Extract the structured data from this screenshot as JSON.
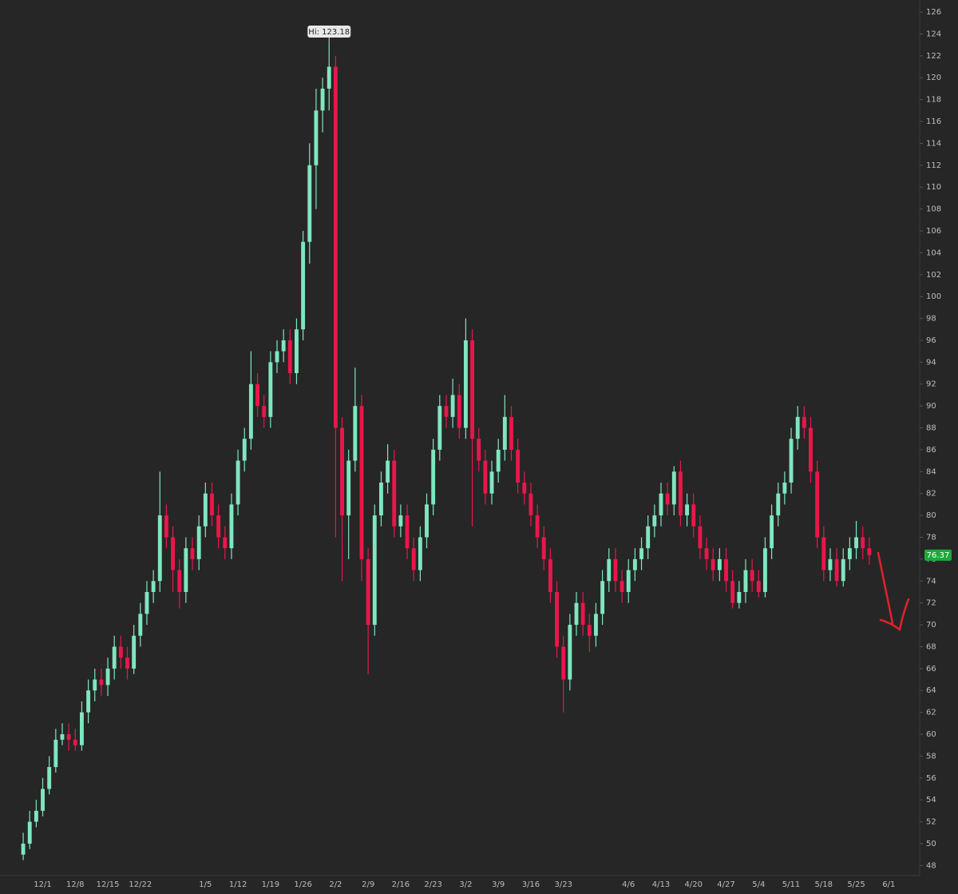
{
  "chart_data": {
    "type": "candlestick",
    "up_color": "#7fe6bf",
    "down_color": "#e8174a",
    "hi_label": "Hi: 123.18",
    "categories": [
      null,
      null,
      null,
      "12/1",
      null,
      null,
      null,
      null,
      "12/8",
      null,
      null,
      null,
      null,
      "12/15",
      null,
      null,
      null,
      null,
      "12/22",
      null,
      null,
      null,
      null,
      null,
      null,
      null,
      null,
      null,
      "1/5",
      null,
      null,
      null,
      null,
      "1/12",
      null,
      null,
      null,
      null,
      "1/19",
      null,
      null,
      null,
      null,
      "1/26",
      null,
      null,
      null,
      null,
      "2/2",
      null,
      null,
      null,
      null,
      "2/9",
      null,
      null,
      null,
      null,
      "2/16",
      null,
      null,
      null,
      null,
      "2/23",
      null,
      null,
      null,
      null,
      "3/2",
      null,
      null,
      null,
      null,
      "3/9",
      null,
      null,
      null,
      null,
      "3/16",
      null,
      null,
      null,
      null,
      "3/23",
      null,
      null,
      null,
      null,
      null,
      null,
      null,
      null,
      null,
      "4/6",
      null,
      null,
      null,
      null,
      "4/13",
      null,
      null,
      null,
      null,
      "4/20",
      null,
      null,
      null,
      null,
      "4/27",
      null,
      null,
      null,
      null,
      "5/4",
      null,
      null,
      null,
      null,
      "5/11",
      null,
      null,
      null,
      null,
      "5/18",
      null,
      null,
      null,
      null,
      "5/25",
      null,
      null,
      null,
      null,
      "6/1",
      null,
      null,
      null,
      null
    ],
    "open": [
      49,
      50,
      52,
      53,
      55,
      57,
      59.5,
      60,
      59.5,
      59,
      62,
      64,
      65,
      64.5,
      66,
      68,
      67,
      66,
      69,
      71,
      73,
      74,
      80,
      78,
      75,
      73,
      77,
      76,
      79,
      82,
      80,
      78,
      77,
      81,
      85,
      87,
      92,
      90,
      89,
      94,
      95,
      96,
      93,
      97,
      105,
      112,
      117,
      119,
      121,
      88,
      80,
      85,
      90,
      76,
      70,
      80,
      83,
      85,
      79,
      80,
      77,
      75,
      78,
      81,
      86,
      90,
      89,
      91,
      88,
      96,
      87,
      85,
      82,
      84,
      86,
      89,
      86,
      83,
      82,
      80,
      78,
      76,
      73,
      68,
      65,
      70,
      72,
      70,
      69,
      71,
      74,
      76,
      74,
      73,
      75,
      76,
      77,
      79,
      80,
      82,
      81,
      84,
      80,
      81,
      79,
      77,
      76,
      75,
      76,
      74,
      72,
      73,
      75,
      74,
      73,
      77,
      80,
      82,
      83,
      87,
      89,
      88,
      84,
      78,
      75,
      76,
      74,
      76,
      77,
      78,
      77,
      null,
      null,
      null,
      null,
      null,
      null,
      null
    ],
    "high": [
      51,
      53,
      54,
      56,
      58,
      60.5,
      61,
      61,
      60.5,
      63,
      65,
      66,
      66,
      67,
      69,
      69,
      68,
      70,
      72,
      74,
      75,
      84,
      81,
      79,
      76,
      78,
      78,
      80,
      83,
      83,
      81,
      79,
      82,
      86,
      88,
      95,
      93,
      91,
      95,
      96,
      97,
      97,
      98,
      106,
      114,
      119,
      120,
      123.18,
      122,
      89,
      86,
      93.5,
      91,
      77,
      81,
      84,
      86.5,
      86,
      81,
      81,
      78,
      79,
      82,
      87,
      91,
      91,
      92.5,
      92,
      98,
      97,
      88,
      86,
      85,
      87,
      91,
      90,
      87,
      84,
      83,
      81,
      79,
      77,
      74,
      69,
      71,
      73,
      73,
      71,
      72,
      75,
      77,
      77,
      75,
      76,
      77,
      78,
      80,
      81,
      83,
      83,
      84.5,
      85,
      82,
      82,
      80,
      78,
      77,
      77,
      77,
      75,
      74,
      76,
      76,
      75,
      78,
      81,
      83,
      84,
      88,
      90,
      90,
      89,
      85,
      79,
      77,
      77,
      77,
      78,
      79.5,
      79,
      78,
      null,
      null,
      null,
      null,
      null,
      null,
      null
    ],
    "low": [
      48.5,
      49.5,
      51.5,
      52.5,
      54.5,
      56.5,
      59,
      58.5,
      58.5,
      58.5,
      61,
      63,
      63.5,
      63.5,
      65,
      66,
      65,
      65.5,
      68,
      70,
      72,
      73,
      77,
      73,
      71.5,
      72,
      75,
      75,
      78,
      79,
      77,
      76,
      76,
      80,
      84,
      86,
      89,
      88,
      88,
      93,
      94,
      92,
      92,
      96,
      103,
      108,
      115,
      117,
      78,
      74,
      76,
      84,
      74,
      65.5,
      69,
      79,
      82,
      78,
      78,
      76,
      74,
      74,
      77,
      80,
      85,
      88,
      88,
      87,
      87,
      79,
      84,
      81,
      81,
      83,
      85,
      85,
      82,
      81,
      79,
      77,
      75,
      72,
      67,
      62,
      64,
      69,
      69,
      67.5,
      68,
      70,
      73,
      73,
      72,
      72,
      74,
      75,
      76,
      78,
      79,
      80,
      80,
      79,
      79,
      78,
      76,
      75,
      74,
      74,
      73,
      71.5,
      71.5,
      72,
      73,
      72.5,
      72.5,
      76,
      79,
      81,
      82,
      86,
      87,
      83,
      77,
      74,
      74,
      73.5,
      73.5,
      75,
      76,
      76,
      75.5,
      null,
      null,
      null,
      null,
      null,
      null,
      null
    ],
    "close": [
      50,
      52,
      53,
      55,
      57,
      59.5,
      60,
      59.5,
      59,
      62,
      64,
      65,
      64.5,
      66,
      68,
      67,
      66,
      69,
      71,
      73,
      74,
      80,
      78,
      75,
      73,
      77,
      76,
      79,
      82,
      80,
      78,
      77,
      81,
      85,
      87,
      92,
      90,
      89,
      94,
      95,
      96,
      93,
      97,
      105,
      112,
      117,
      119,
      121,
      88,
      80,
      85,
      90,
      76,
      70,
      80,
      83,
      85,
      79,
      80,
      77,
      75,
      78,
      81,
      86,
      90,
      89,
      91,
      88,
      96,
      87,
      85,
      82,
      84,
      86,
      89,
      86,
      83,
      82,
      80,
      78,
      76,
      73,
      68,
      65,
      70,
      72,
      70,
      69,
      71,
      74,
      76,
      74,
      73,
      75,
      76,
      77,
      79,
      80,
      82,
      81,
      84,
      80,
      81,
      79,
      77,
      76,
      75,
      76,
      74,
      72,
      73,
      75,
      74,
      73,
      77,
      80,
      82,
      83,
      87,
      89,
      88,
      84,
      78,
      75,
      76,
      74,
      76,
      77,
      78,
      77,
      76.37,
      null,
      null,
      null,
      null,
      null,
      null,
      null
    ],
    "ylim": [
      45.4,
      127.1
    ],
    "yticks": [
      48,
      50,
      52,
      54,
      56,
      58,
      60,
      62,
      64,
      66,
      68,
      70,
      72,
      74,
      76,
      78,
      80,
      82,
      84,
      86,
      88,
      90,
      92,
      94,
      96,
      98,
      100,
      102,
      104,
      106,
      108,
      110,
      112,
      114,
      116,
      118,
      120,
      122,
      124,
      126
    ]
  }
}
